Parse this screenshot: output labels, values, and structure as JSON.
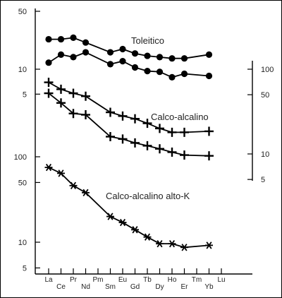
{
  "chart_data": {
    "type": "line",
    "x_categories": [
      "La",
      "Ce",
      "Pr",
      "Nd",
      "Pm",
      "Sm",
      "Eu",
      "Gd",
      "Tb",
      "Dy",
      "Ho",
      "Er",
      "Tm",
      "Yb",
      "Lu"
    ],
    "panels": [
      {
        "label": "Toleitico",
        "axis_side": "left",
        "scale": "log",
        "ylim": [
          5,
          50
        ],
        "ticks": [
          "50",
          "10",
          "5"
        ],
        "marker": "dot",
        "series": [
          {
            "values": {
              "La": 23,
              "Ce": 23,
              "Pr": 24,
              "Nd": 21,
              "Sm": 16,
              "Eu": 17.5,
              "Gd": 15.5,
              "Tb": 14.5,
              "Dy": 14,
              "Ho": 13.5,
              "Er": 13.5,
              "Yb": 15
            }
          },
          {
            "values": {
              "La": 12,
              "Ce": 15,
              "Pr": 14,
              "Nd": 16,
              "Sm": 11.5,
              "Eu": 12.5,
              "Gd": 10.5,
              "Tb": 9.5,
              "Dy": 9.3,
              "Ho": 8,
              "Er": 8.8,
              "Yb": 8.3
            }
          }
        ]
      },
      {
        "label": "Calco-alcalino",
        "axis_side": "right",
        "scale": "log",
        "ylim": [
          5,
          100
        ],
        "ticks": [
          "100",
          "50",
          "10",
          "5"
        ],
        "marker": "plus",
        "series": [
          {
            "values": {
              "La": 70,
              "Ce": 58,
              "Pr": 52,
              "Nd": 48,
              "Sm": 31,
              "Eu": 28,
              "Gd": 26,
              "Tb": 23,
              "Dy": 20,
              "Ho": 18,
              "Er": 18,
              "Yb": 18.5
            }
          },
          {
            "values": {
              "La": 52,
              "Ce": 40,
              "Pr": 30,
              "Nd": 29,
              "Sm": 16,
              "Eu": 15,
              "Gd": 13.5,
              "Tb": 12.5,
              "Dy": 11.5,
              "Ho": 10.5,
              "Er": 9.7,
              "Yb": 9.5
            }
          }
        ]
      },
      {
        "label": "Calco-alcalino alto-K",
        "axis_side": "left",
        "scale": "log",
        "ylim": [
          5,
          100
        ],
        "ticks": [
          "100",
          "50",
          "10",
          "5"
        ],
        "marker": "asterisk",
        "series": [
          {
            "values": {
              "La": 75,
              "Ce": 64,
              "Pr": 46,
              "Nd": 38,
              "Sm": 20,
              "Eu": 17,
              "Gd": 14,
              "Tb": 11.5,
              "Dy": 9.6,
              "Ho": 9.6,
              "Er": 8.7,
              "Yb": 9.2
            }
          }
        ]
      }
    ]
  },
  "colors": {
    "line": "#000000",
    "frame": "#000000",
    "background": "#ffffff"
  }
}
